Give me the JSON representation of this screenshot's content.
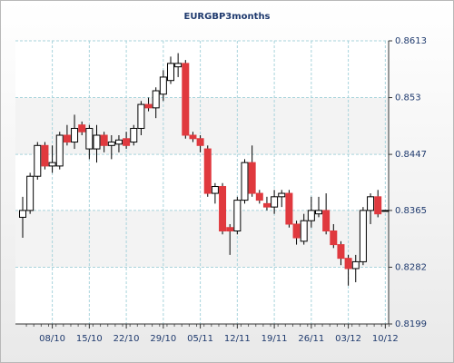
{
  "chart_data": {
    "type": "candlestick",
    "title": "EURGBP3months",
    "categories": [
      null,
      null,
      null,
      null,
      "08/10",
      null,
      null,
      null,
      null,
      "15/10",
      null,
      null,
      null,
      null,
      "22/10",
      null,
      null,
      null,
      null,
      "29/10",
      null,
      null,
      null,
      null,
      "05/11",
      null,
      null,
      null,
      null,
      "12/11",
      null,
      null,
      null,
      null,
      "19/11",
      null,
      null,
      null,
      null,
      "26/11",
      null,
      null,
      null,
      null,
      "03/12",
      null,
      null,
      null,
      null,
      "10/12"
    ],
    "open": [
      0.8355,
      0.8365,
      0.8415,
      0.846,
      0.843,
      0.843,
      0.8475,
      0.8465,
      0.849,
      0.8455,
      0.8455,
      0.8475,
      0.846,
      0.8462,
      0.847,
      0.8465,
      0.8485,
      0.852,
      0.8515,
      0.8535,
      0.8555,
      0.8575,
      0.858,
      0.8475,
      0.847,
      0.8455,
      0.839,
      0.84,
      0.834,
      0.8335,
      0.838,
      0.8435,
      0.839,
      0.8375,
      0.837,
      0.8385,
      0.839,
      0.8345,
      0.832,
      0.835,
      0.836,
      0.8365,
      0.8335,
      0.8315,
      0.8295,
      0.828,
      0.829,
      0.8365,
      0.8385,
      0.8365
    ],
    "high": [
      0.8385,
      0.842,
      0.8465,
      0.8465,
      0.846,
      0.848,
      0.849,
      0.8505,
      0.8495,
      0.849,
      0.849,
      0.848,
      0.8475,
      0.8475,
      0.848,
      0.849,
      0.8525,
      0.853,
      0.8545,
      0.857,
      0.859,
      0.8595,
      0.8585,
      0.848,
      0.8475,
      0.846,
      0.8405,
      0.8405,
      0.8345,
      0.8385,
      0.844,
      0.846,
      0.8395,
      0.8385,
      0.8395,
      0.8395,
      0.8395,
      0.835,
      0.836,
      0.8385,
      0.8385,
      0.839,
      0.8345,
      0.832,
      0.83,
      0.83,
      0.837,
      0.839,
      0.8395,
      0.8365
    ],
    "low": [
      0.8325,
      0.836,
      0.841,
      0.8425,
      0.842,
      0.8425,
      0.846,
      0.8455,
      0.8475,
      0.844,
      0.8435,
      0.845,
      0.844,
      0.845,
      0.8455,
      0.846,
      0.8475,
      0.851,
      0.85,
      0.8525,
      0.855,
      0.856,
      0.847,
      0.8465,
      0.845,
      0.8385,
      0.8375,
      0.833,
      0.83,
      0.833,
      0.8375,
      0.8385,
      0.8375,
      0.8365,
      0.836,
      0.837,
      0.834,
      0.8315,
      0.8315,
      0.834,
      0.8355,
      0.833,
      0.831,
      0.8285,
      0.8255,
      0.826,
      0.8285,
      0.8345,
      0.8355,
      0.8365
    ],
    "close": [
      0.8365,
      0.8415,
      0.846,
      0.843,
      0.8435,
      0.8475,
      0.8465,
      0.8485,
      0.848,
      0.8485,
      0.8475,
      0.846,
      0.8465,
      0.8468,
      0.846,
      0.8485,
      0.852,
      0.8515,
      0.854,
      0.856,
      0.858,
      0.858,
      0.8475,
      0.847,
      0.846,
      0.839,
      0.84,
      0.8335,
      0.8335,
      0.838,
      0.8435,
      0.839,
      0.838,
      0.837,
      0.8385,
      0.839,
      0.8345,
      0.8325,
      0.835,
      0.8365,
      0.8365,
      0.8335,
      0.8315,
      0.8295,
      0.828,
      0.829,
      0.8365,
      0.8385,
      0.836,
      0.8365
    ],
    "up_color": "#ffffff",
    "down_color": "#e0393e",
    "ylim": [
      0.8199,
      0.8613
    ],
    "yticks": [
      0.8199,
      0.8282,
      0.8365,
      0.8447,
      0.853,
      0.8613
    ],
    "grid": true
  }
}
